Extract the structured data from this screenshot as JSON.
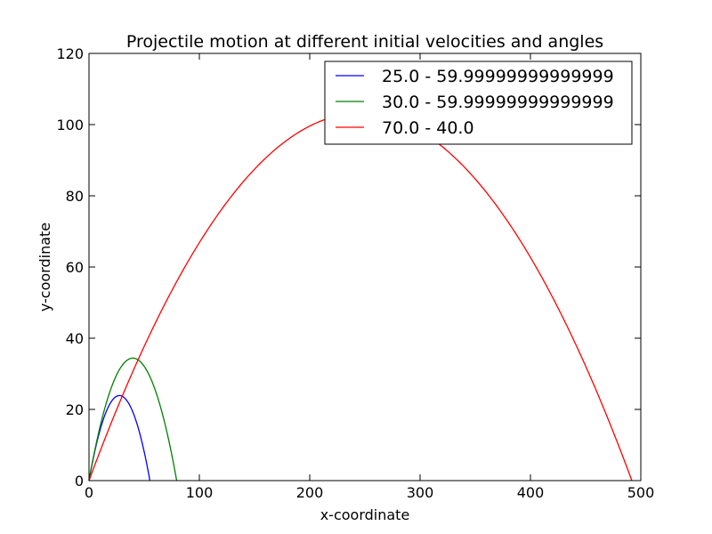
{
  "chart_data": {
    "type": "line",
    "title": "Projectile motion at different initial velocities and angles",
    "xlabel": "x-coordinate",
    "ylabel": "y-coordinate",
    "xlim": [
      0,
      500
    ],
    "ylim": [
      0,
      120
    ],
    "xticks": [
      0,
      100,
      200,
      300,
      400,
      500
    ],
    "yticks": [
      0,
      20,
      40,
      60,
      80,
      100,
      120
    ],
    "grid": false,
    "legend_position": "top-right",
    "series": [
      {
        "name": "25.0 - 59.99999999999999",
        "color": "#0000ff",
        "velocity": 25.0,
        "angle_deg": 60.0,
        "x": [
          0,
          5,
          10,
          15,
          20,
          25,
          27.6,
          30,
          35,
          40,
          45,
          50,
          55.2
        ],
        "y": [
          0,
          8.3,
          14.1,
          19.4,
          22.3,
          23.8,
          23.9,
          23.8,
          22.4,
          19.3,
          14.5,
          8.1,
          0
        ]
      },
      {
        "name": "30.0 - 59.99999999999999",
        "color": "#008000",
        "velocity": 30.0,
        "angle_deg": 60.0,
        "x": [
          0,
          10,
          20,
          30,
          39.7,
          50,
          60,
          70,
          79.5
        ],
        "y": [
          0,
          15.2,
          26.8,
          33.0,
          34.4,
          33.1,
          26.6,
          15.4,
          0
        ]
      },
      {
        "name": "70.0 - 40.0",
        "color": "#ff0000",
        "velocity": 70.0,
        "angle_deg": 40.0,
        "x": [
          0,
          50,
          100,
          150,
          200,
          246.1,
          300,
          350,
          400,
          450,
          492.2
        ],
        "y": [
          0,
          38.3,
          67.9,
          89.0,
          100.7,
          103.3,
          96.8,
          80.3,
          55.4,
          22.0,
          0
        ]
      }
    ]
  }
}
